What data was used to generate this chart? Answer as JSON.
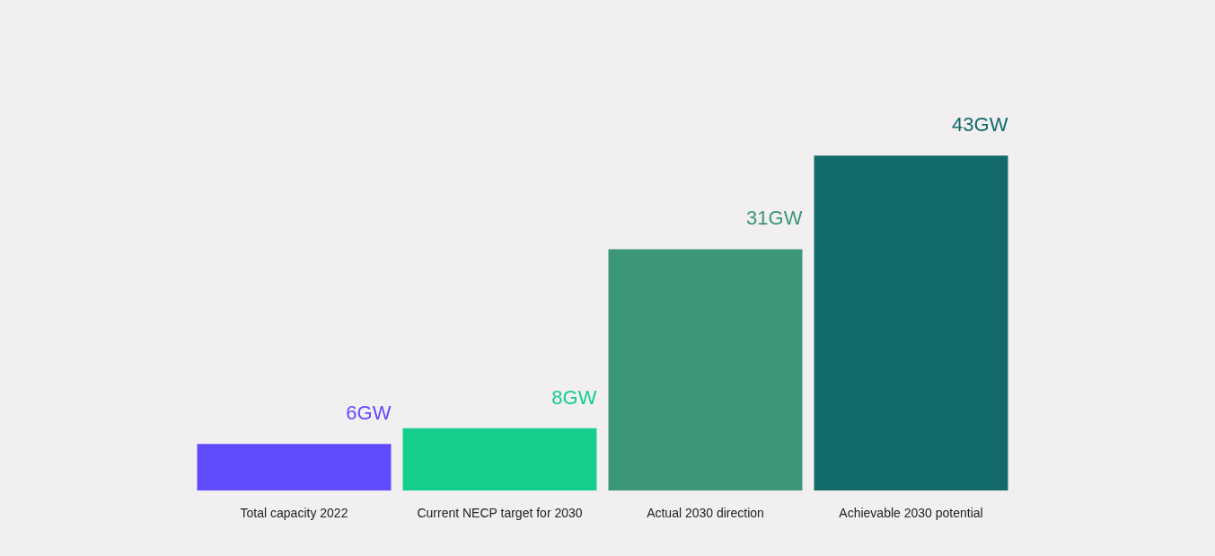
{
  "chart_data": {
    "type": "bar",
    "categories": [
      "Total capacity 2022",
      "Current NECP target for 2030",
      "Actual 2030 direction",
      "Achievable 2030 potential"
    ],
    "values": [
      6,
      8,
      31,
      43
    ],
    "colors": [
      "#614bff",
      "#14cf8c",
      "#3c9678",
      "#126a69"
    ],
    "value_labels": [
      "6GW",
      "8GW",
      "31GW",
      "43GW"
    ],
    "tick_labels": "x",
    "grid": false,
    "legend": false
  }
}
